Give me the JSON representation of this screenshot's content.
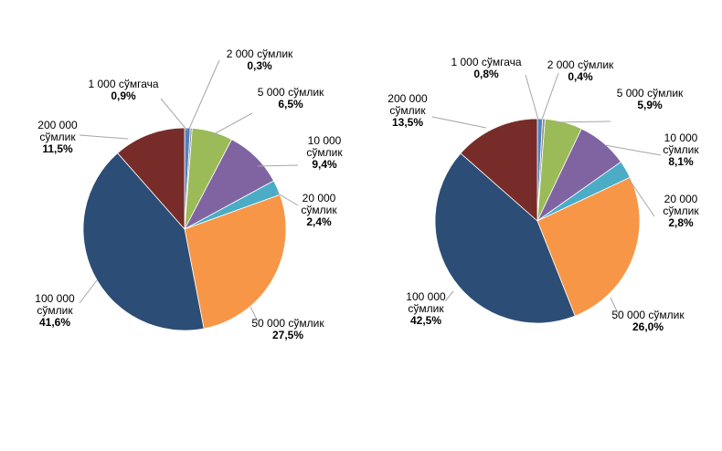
{
  "chart_data": [
    {
      "type": "pie",
      "unit": "%",
      "categories": [
        "1 000 сўмгача",
        "2 000 сўмлик",
        "5 000 сўмлик",
        "10 000 сўмлик",
        "20 000 сўмлик",
        "50 000 сўмлик",
        "100 000 сўмлик",
        "200 000 сўмлик"
      ],
      "values": [
        0.9,
        0.3,
        6.5,
        9.4,
        2.4,
        27.5,
        41.6,
        11.5
      ],
      "value_labels": [
        "0,9%",
        "0,3%",
        "6,5%",
        "9,4%",
        "2,4%",
        "27,5%",
        "41,6%",
        "11,5%"
      ],
      "colors": [
        "#4f81bd",
        "#8c8c8c",
        "#9bbb59",
        "#8064a2",
        "#4bacc6",
        "#f79646",
        "#2c4d75",
        "#772c2a"
      ],
      "label_lines": [
        [
          "1 000 сўмгача"
        ],
        [
          "2 000 сўмлик"
        ],
        [
          "5 000 сўмлик"
        ],
        [
          "10 000",
          "сўмлик"
        ],
        [
          "20 000",
          "сўмлик"
        ],
        [
          "50 000 сўмлик"
        ],
        [
          "100 000",
          "сўмлик"
        ],
        [
          "200 000",
          "сўмлик"
        ]
      ]
    },
    {
      "type": "pie",
      "unit": "%",
      "categories": [
        "1 000 сўмгача",
        "2 000 сўмлик",
        "5 000 сўмлик",
        "10 000 сўмлик",
        "20 000 сўмлик",
        "50 000 сўмлик",
        "100 000 сўмлик",
        "200 000 сўмлик"
      ],
      "values": [
        0.8,
        0.4,
        5.9,
        8.1,
        2.8,
        26.0,
        42.5,
        13.5
      ],
      "value_labels": [
        "0,8%",
        "0,4%",
        "5,9%",
        "8,1%",
        "2,8%",
        "26,0%",
        "42,5%",
        "13,5%"
      ],
      "colors": [
        "#4f81bd",
        "#8c8c8c",
        "#9bbb59",
        "#8064a2",
        "#4bacc6",
        "#f79646",
        "#2c4d75",
        "#772c2a"
      ],
      "label_lines": [
        [
          "1 000 сўмгача"
        ],
        [
          "2 000 сўмлик"
        ],
        [
          "5 000 сўмлик"
        ],
        [
          "10 000",
          "сўмлик"
        ],
        [
          "20 000",
          "сўмлик"
        ],
        [
          "50 000 сўмлик"
        ],
        [
          "100 000",
          "сўмлик"
        ],
        [
          "200 000",
          "сўмлик"
        ]
      ]
    }
  ]
}
